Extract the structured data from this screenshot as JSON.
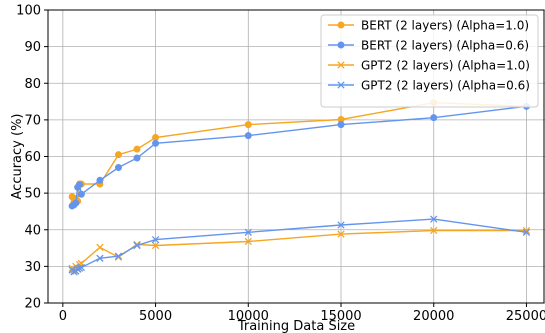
{
  "chart_data": {
    "type": "line",
    "title": "",
    "xlabel": "Training Data Size",
    "ylabel": "Accuracy (%)",
    "xlim": [
      -800,
      26000
    ],
    "ylim": [
      20,
      100
    ],
    "xticks": [
      0,
      5000,
      10000,
      15000,
      20000,
      25000
    ],
    "yticks": [
      20,
      30,
      40,
      50,
      60,
      70,
      80,
      90,
      100
    ],
    "grid": true,
    "legend_position": "top-right",
    "series": [
      {
        "name": "BERT (2 layers) (Alpha=1.0)",
        "color": "#f5a623",
        "marker": "circle",
        "points": [
          [
            500,
            49.0
          ],
          [
            600,
            47.5
          ],
          [
            700,
            48.5
          ],
          [
            800,
            47.8
          ],
          [
            900,
            52.5
          ],
          [
            1000,
            52.5
          ],
          [
            2000,
            52.5
          ],
          [
            3000,
            60.5
          ],
          [
            4000,
            62.0
          ],
          [
            5000,
            65.2
          ],
          [
            10000,
            68.7
          ],
          [
            15000,
            70.1
          ],
          [
            20000,
            74.7
          ],
          [
            25000,
            73.7
          ]
        ]
      },
      {
        "name": "BERT (2 layers) (Alpha=0.6)",
        "color": "#6495ed",
        "marker": "circle",
        "points": [
          [
            500,
            46.5
          ],
          [
            600,
            46.8
          ],
          [
            700,
            47.3
          ],
          [
            800,
            51.6
          ],
          [
            900,
            52.3
          ],
          [
            1000,
            49.7
          ],
          [
            2000,
            53.5
          ],
          [
            3000,
            57.0
          ],
          [
            4000,
            59.6
          ],
          [
            5000,
            63.6
          ],
          [
            10000,
            65.7
          ],
          [
            15000,
            68.7
          ],
          [
            20000,
            70.6
          ],
          [
            25000,
            73.7
          ]
        ]
      },
      {
        "name": "GPT2 (2 layers) (Alpha=1.0)",
        "color": "#f5a623",
        "marker": "x",
        "points": [
          [
            500,
            29.5
          ],
          [
            600,
            29.0
          ],
          [
            700,
            30.0
          ],
          [
            800,
            29.2
          ],
          [
            900,
            30.5
          ],
          [
            1000,
            30.8
          ],
          [
            2000,
            35.2
          ],
          [
            3000,
            32.5
          ],
          [
            4000,
            36.0
          ],
          [
            5000,
            35.7
          ],
          [
            10000,
            36.8
          ],
          [
            15000,
            38.8
          ],
          [
            20000,
            39.8
          ],
          [
            25000,
            39.8
          ]
        ]
      },
      {
        "name": "GPT2 (2 layers) (Alpha=0.6)",
        "color": "#6495ed",
        "marker": "x",
        "points": [
          [
            500,
            29.0
          ],
          [
            600,
            28.5
          ],
          [
            700,
            28.7
          ],
          [
            800,
            29.3
          ],
          [
            900,
            29.5
          ],
          [
            1000,
            29.7
          ],
          [
            2000,
            32.2
          ],
          [
            3000,
            32.8
          ],
          [
            4000,
            35.7
          ],
          [
            5000,
            37.3
          ],
          [
            10000,
            39.3
          ],
          [
            15000,
            41.3
          ],
          [
            20000,
            42.9
          ],
          [
            25000,
            39.3
          ]
        ]
      }
    ]
  }
}
